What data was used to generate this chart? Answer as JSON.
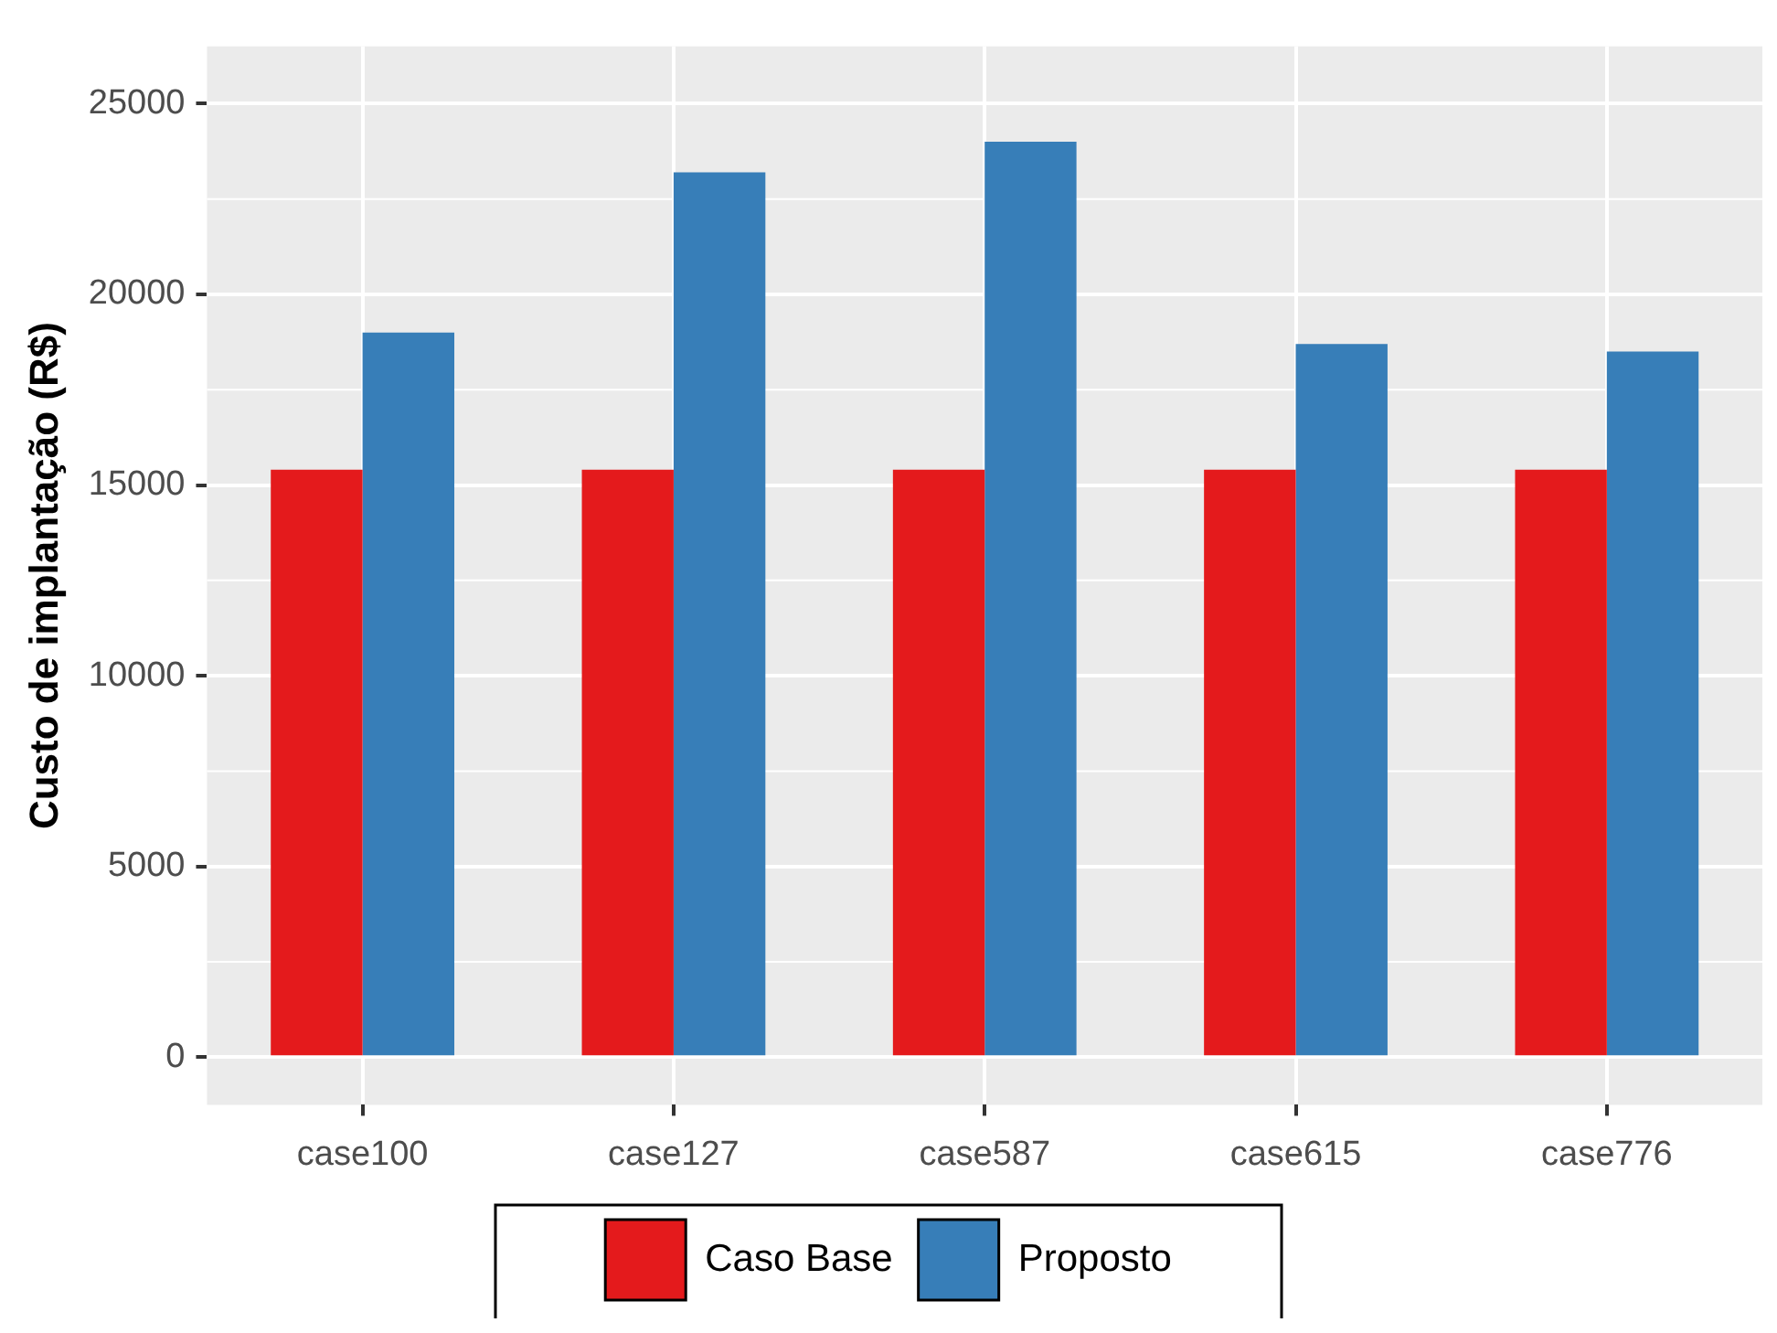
{
  "chart_data": {
    "type": "bar",
    "ylabel": "Custo de implantação (R$)",
    "categories": [
      "case100",
      "case127",
      "case587",
      "case615",
      "case776"
    ],
    "series": [
      {
        "name": "Caso Base",
        "color": "#e41a1c",
        "values": [
          15400,
          15400,
          15400,
          15400,
          15400
        ]
      },
      {
        "name": "Proposto",
        "color": "#377eb8",
        "values": [
          19000,
          23200,
          24000,
          18700,
          18500
        ]
      }
    ],
    "ylim": [
      -1250,
      26500
    ],
    "yticks": [
      0,
      5000,
      10000,
      15000,
      20000,
      25000
    ],
    "grid": true,
    "legend": "bottom"
  }
}
